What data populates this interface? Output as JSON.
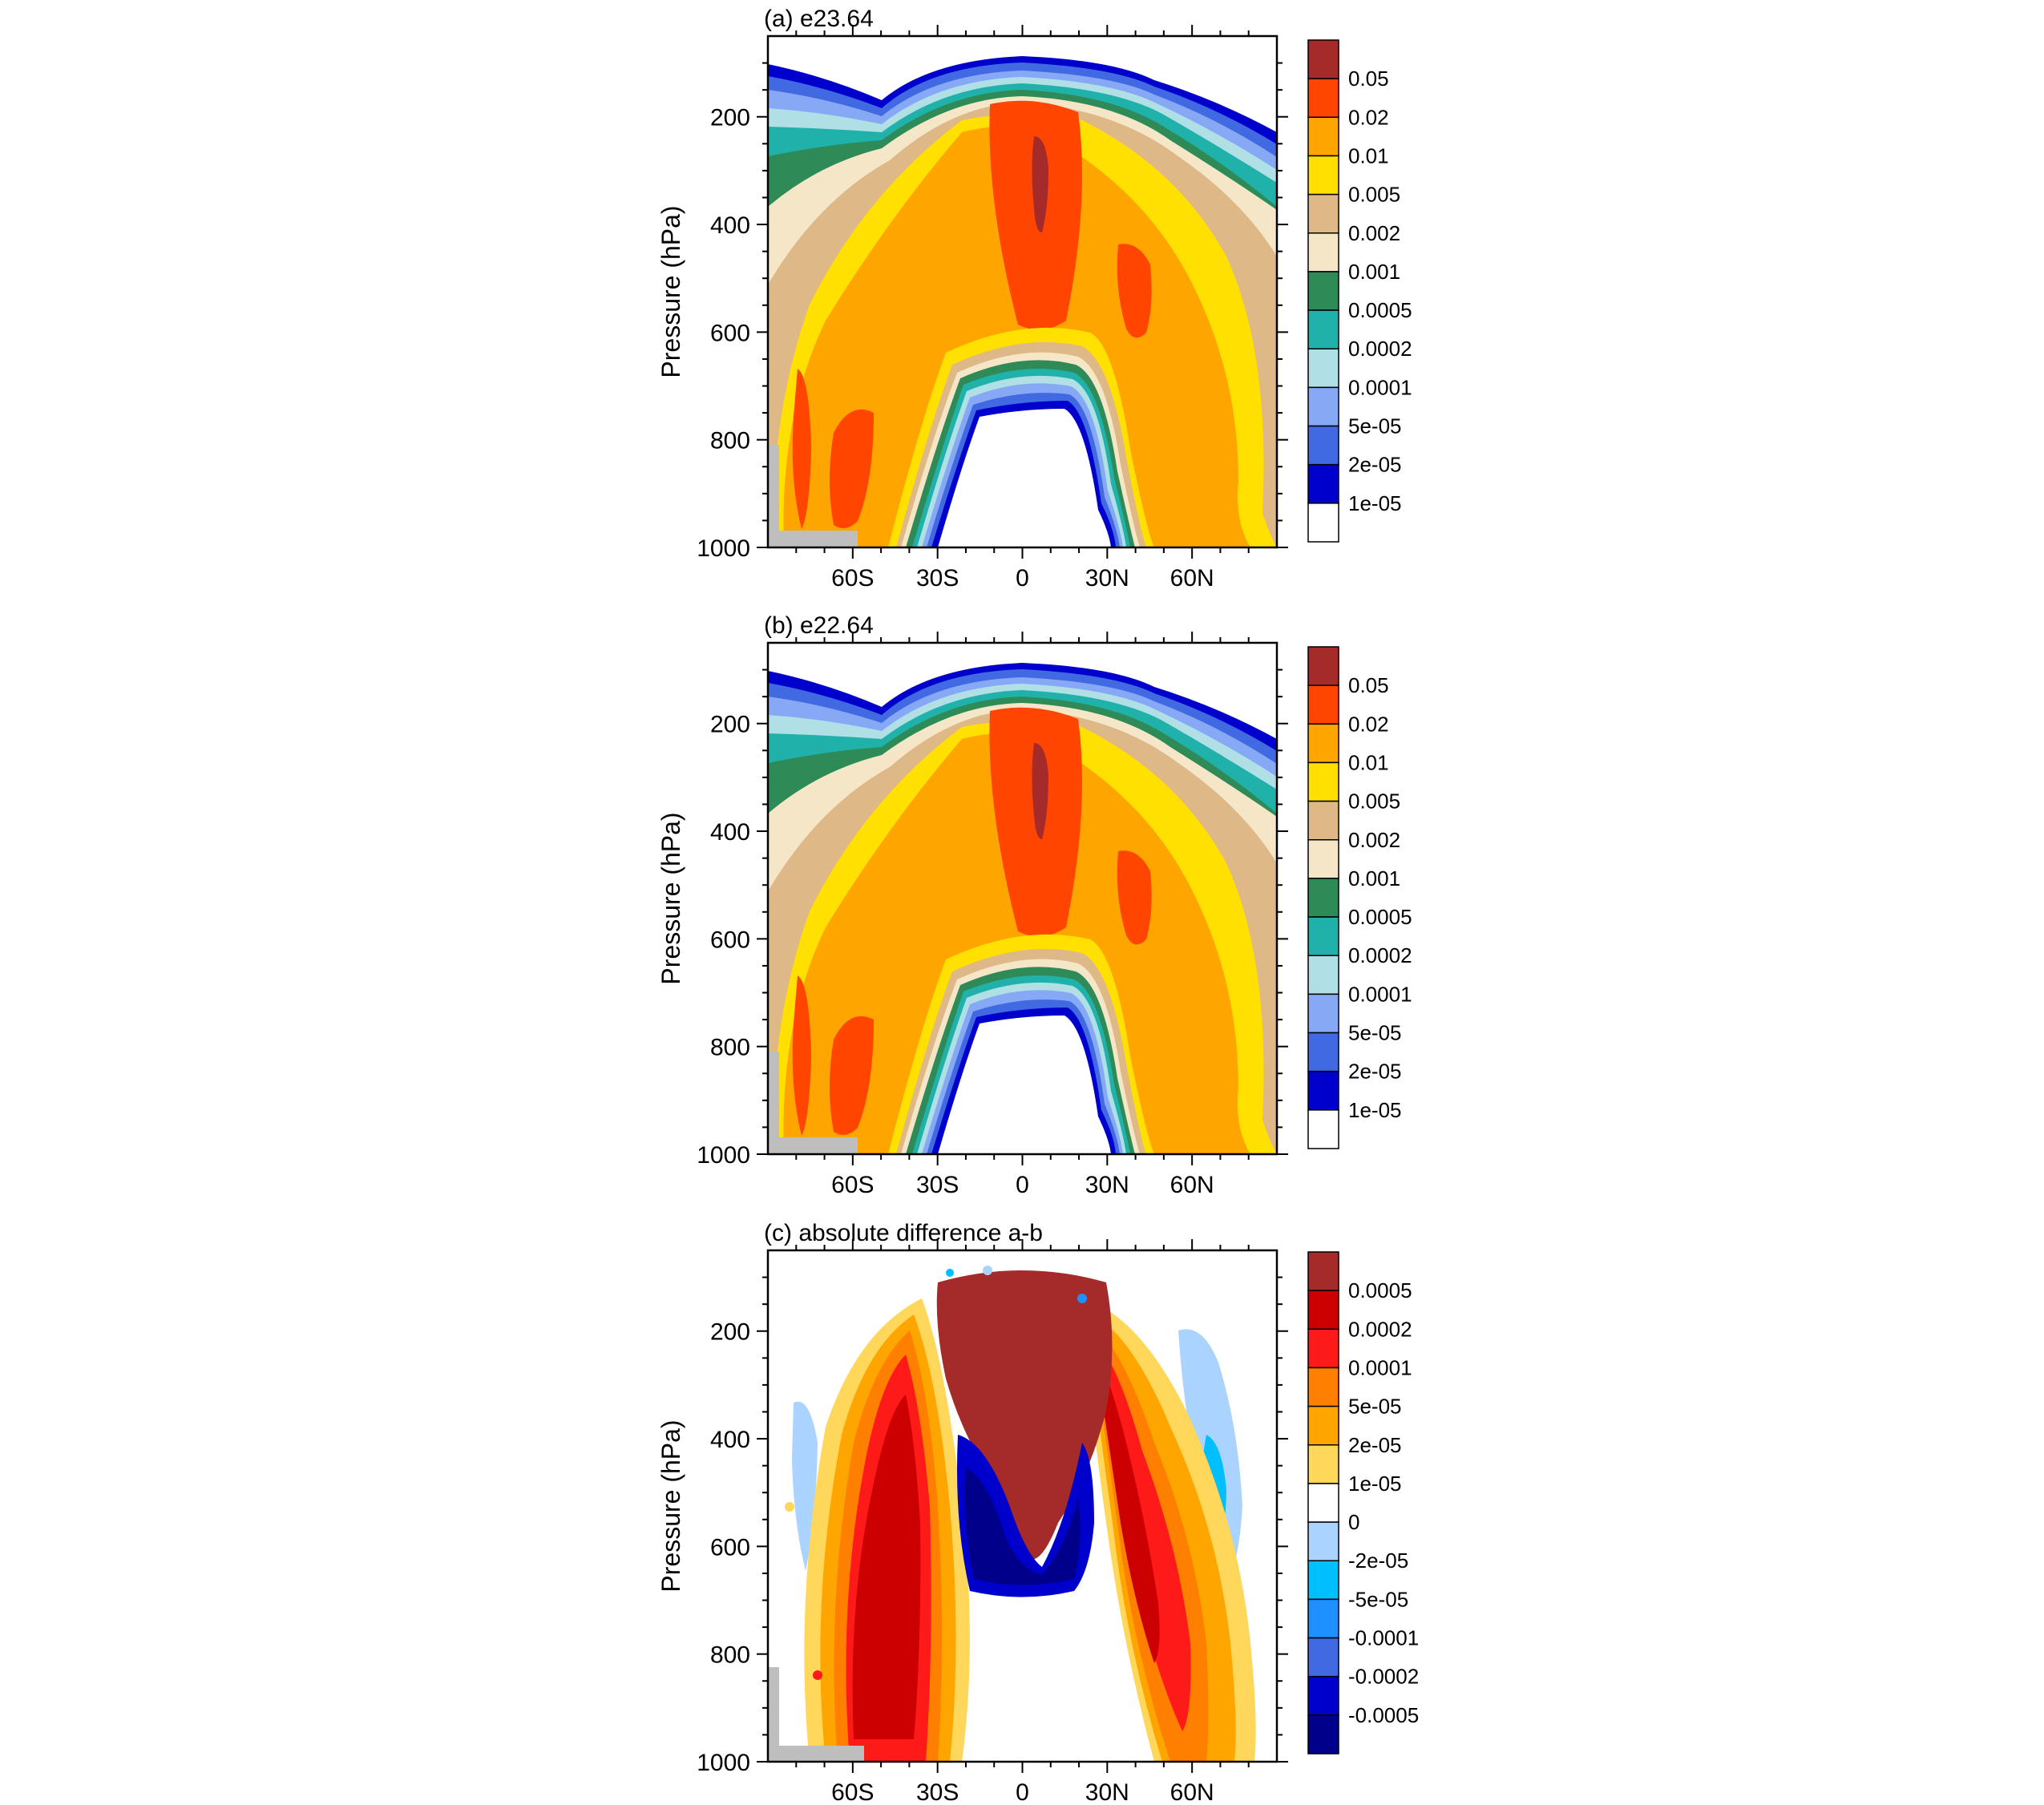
{
  "chart_data": [
    {
      "type": "contour",
      "panel_title": "(a) e23.64",
      "ylabel": "Pressure (hPa)",
      "yticks": [
        "200",
        "400",
        "600",
        "800",
        "1000"
      ],
      "ylim": [
        50,
        1000
      ],
      "xticks": [
        "60S",
        "30S",
        "0",
        "30N",
        "60N"
      ],
      "xlim": [
        -90,
        90
      ],
      "colorbar": {
        "labels": [
          "0.05",
          "0.02",
          "0.01",
          "0.005",
          "0.002",
          "0.001",
          "0.0005",
          "0.0002",
          "0.0001",
          "5e-05",
          "2e-05",
          "1e-05"
        ],
        "colors": [
          "#a52a2a",
          "#ff4500",
          "#ffa500",
          "#ffe000",
          "#deb887",
          "#f5e6c8",
          "#2e8b57",
          "#20b2aa",
          "#b0e0e6",
          "#87a8f5",
          "#4169e1",
          "#0000cd",
          "#ffffff"
        ]
      }
    },
    {
      "type": "contour",
      "panel_title": "(b) e22.64",
      "ylabel": "Pressure (hPa)",
      "yticks": [
        "200",
        "400",
        "600",
        "800",
        "1000"
      ],
      "ylim": [
        50,
        1000
      ],
      "xticks": [
        "60S",
        "30S",
        "0",
        "30N",
        "60N"
      ],
      "xlim": [
        -90,
        90
      ],
      "colorbar": {
        "labels": [
          "0.05",
          "0.02",
          "0.01",
          "0.005",
          "0.002",
          "0.001",
          "0.0005",
          "0.0002",
          "0.0001",
          "5e-05",
          "2e-05",
          "1e-05"
        ],
        "colors": [
          "#a52a2a",
          "#ff4500",
          "#ffa500",
          "#ffe000",
          "#deb887",
          "#f5e6c8",
          "#2e8b57",
          "#20b2aa",
          "#b0e0e6",
          "#87a8f5",
          "#4169e1",
          "#0000cd",
          "#ffffff"
        ]
      }
    },
    {
      "type": "contour",
      "panel_title": "(c) absolute difference a-b",
      "ylabel": "Pressure (hPa)",
      "yticks": [
        "200",
        "400",
        "600",
        "800",
        "1000"
      ],
      "ylim": [
        50,
        1000
      ],
      "xticks": [
        "60S",
        "30S",
        "0",
        "30N",
        "60N"
      ],
      "xlim": [
        -90,
        90
      ],
      "colorbar": {
        "labels": [
          "0.0005",
          "0.0002",
          "0.0001",
          "5e-05",
          "2e-05",
          "1e-05",
          "0",
          "-2e-05",
          "-5e-05",
          "-0.0001",
          "-0.0002",
          "-0.0005"
        ],
        "colors": [
          "#a52a2a",
          "#cc0000",
          "#ff1a1a",
          "#ff7f00",
          "#ffa500",
          "#ffd75a",
          "#ffffff",
          "#aad4ff",
          "#00bfff",
          "#1e90ff",
          "#4169e1",
          "#0000cd",
          "#00008b"
        ]
      }
    }
  ]
}
